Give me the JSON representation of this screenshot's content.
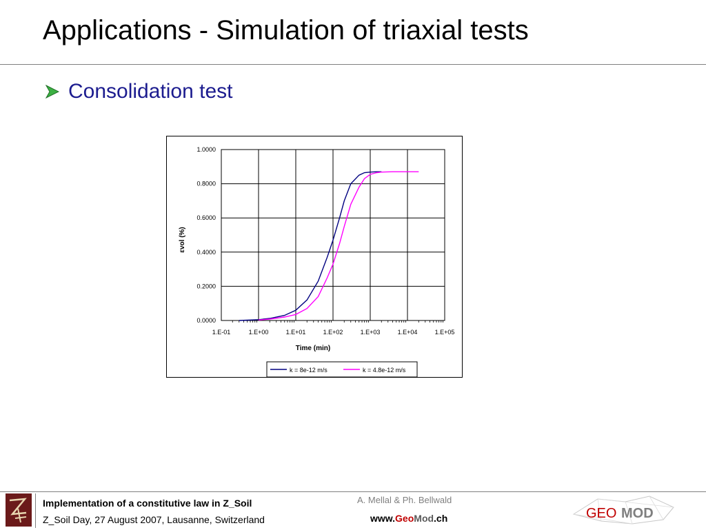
{
  "slide": {
    "title": "Applications - Simulation of triaxial tests",
    "bullet": "Consolidation test"
  },
  "chart_data": {
    "type": "line",
    "xscale": "log",
    "x_ticks": [
      {
        "value": 0.1,
        "label": "1.E-01"
      },
      {
        "value": 1,
        "label": "1.E+00"
      },
      {
        "value": 10,
        "label": "1.E+01"
      },
      {
        "value": 100,
        "label": "1.E+02"
      },
      {
        "value": 1000,
        "label": "1.E+03"
      },
      {
        "value": 10000,
        "label": "1.E+04"
      },
      {
        "value": 100000,
        "label": "1.E+05"
      }
    ],
    "y_ticks": [
      {
        "value": 0,
        "label": "0.0000"
      },
      {
        "value": 0.2,
        "label": "0.2000"
      },
      {
        "value": 0.4,
        "label": "0.4000"
      },
      {
        "value": 0.6,
        "label": "0.6000"
      },
      {
        "value": 0.8,
        "label": "0.8000"
      },
      {
        "value": 1.0,
        "label": "1.0000"
      }
    ],
    "xlim": [
      0.1,
      100000
    ],
    "ylim": [
      0,
      1
    ],
    "xlabel": "Time (min)",
    "ylabel": "εvol (%)",
    "grid": true,
    "legend_position": "bottom",
    "series": [
      {
        "name": "k = 8e-12 m/s",
        "color": "#000080",
        "x": [
          0.3,
          1,
          2,
          5,
          10,
          20,
          40,
          70,
          100,
          150,
          200,
          300,
          500,
          700,
          1000,
          1500,
          2000
        ],
        "y": [
          0.0,
          0.005,
          0.012,
          0.03,
          0.06,
          0.12,
          0.23,
          0.37,
          0.47,
          0.6,
          0.7,
          0.8,
          0.85,
          0.865,
          0.868,
          0.87,
          0.87
        ]
      },
      {
        "name": "k = 4.8e-12 m/s",
        "color": "#ff00ff",
        "x": [
          1,
          2,
          5,
          10,
          20,
          40,
          70,
          100,
          150,
          200,
          300,
          500,
          700,
          1000,
          1500,
          2000,
          4000,
          10000,
          20000
        ],
        "y": [
          0.003,
          0.008,
          0.02,
          0.035,
          0.07,
          0.14,
          0.25,
          0.33,
          0.45,
          0.55,
          0.68,
          0.78,
          0.83,
          0.855,
          0.865,
          0.868,
          0.87,
          0.87,
          0.87
        ]
      }
    ]
  },
  "footer": {
    "title": "Implementation of a constitutive law in Z_Soil",
    "event": "Z_Soil Day, 27 August 2007, Lausanne, Switzerland",
    "authors": "A. Mellal & Ph. Bellwald",
    "url_prefix": "www.",
    "url_geo": "Geo",
    "url_mod": "Mod",
    "url_suffix": ".ch",
    "logo_left": "ZSOIL",
    "logo_right_geo": "GEO",
    "logo_right_mod": "MOD"
  }
}
